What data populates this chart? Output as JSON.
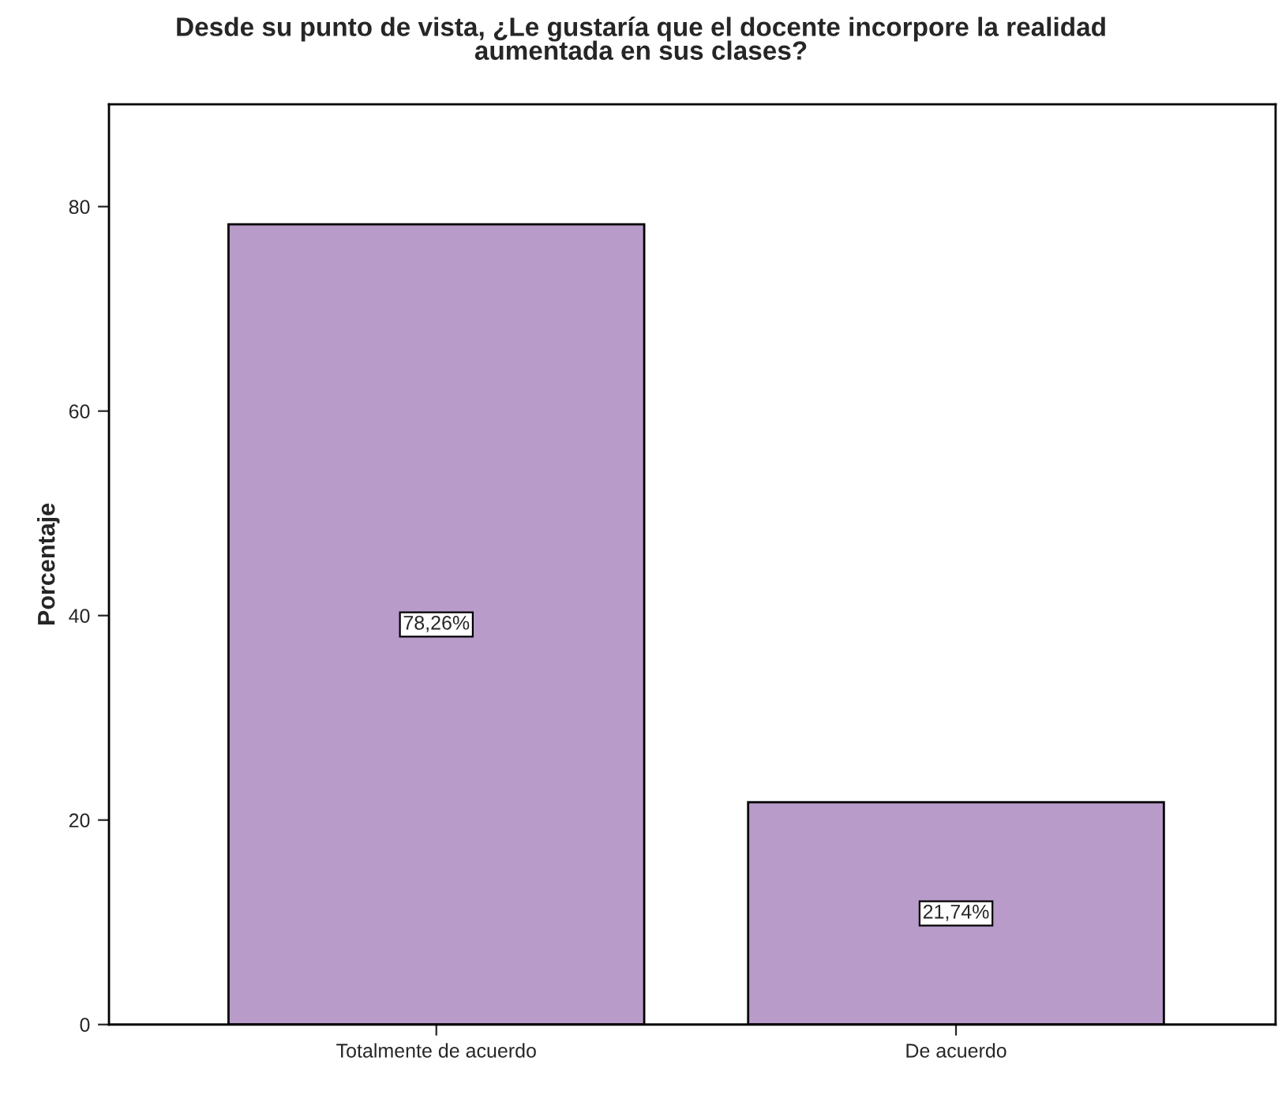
{
  "chart_data": {
    "type": "bar",
    "title": "Desde su punto de vista, ¿Le gustaría que el docente incorpore la realidad\naumentada en sus clases?",
    "ylabel": "Porcentaje",
    "categories": [
      "Totalmente de acuerdo",
      "De acuerdo"
    ],
    "values": [
      78.26,
      21.74
    ],
    "value_labels": [
      "78,26%",
      "21,74%"
    ],
    "color": "#b89bc9",
    "ylim": [
      0,
      90
    ],
    "yticks": [
      0,
      20,
      40,
      60,
      80
    ],
    "grid": false,
    "legend": false
  }
}
